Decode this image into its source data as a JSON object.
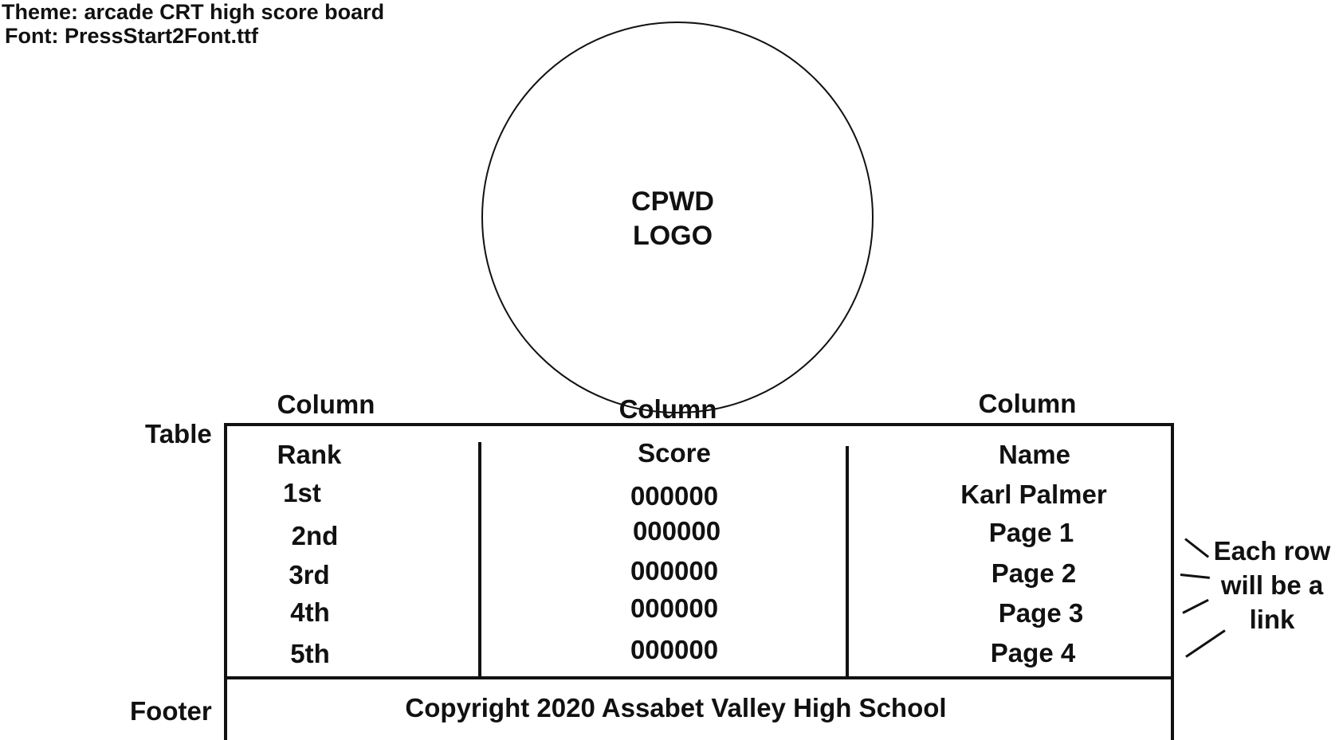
{
  "notes": {
    "theme": "Theme: arcade CRT high score board",
    "font": "Font: PressStart2Font.ttf"
  },
  "logo": {
    "line1": "CPWD",
    "line2": "LOGO"
  },
  "labels": {
    "table": "Table",
    "footer": "Footer",
    "column": "Column"
  },
  "table": {
    "headers": [
      "Rank",
      "Score",
      "Name"
    ],
    "rows": [
      {
        "rank": "1st",
        "score": "000000",
        "name": "Karl Palmer"
      },
      {
        "rank": "2nd",
        "score": "000000",
        "name": "Page 1"
      },
      {
        "rank": "3rd",
        "score": "000000",
        "name": "Page 2"
      },
      {
        "rank": "4th",
        "score": "000000",
        "name": "Page 3"
      },
      {
        "rank": "5th",
        "score": "000000",
        "name": "Page 4"
      }
    ]
  },
  "annotation": {
    "line1": "Each row",
    "line2": "will be a",
    "line3": "link"
  },
  "footer": {
    "text": "Copyright 2020 Assabet Valley High School"
  }
}
